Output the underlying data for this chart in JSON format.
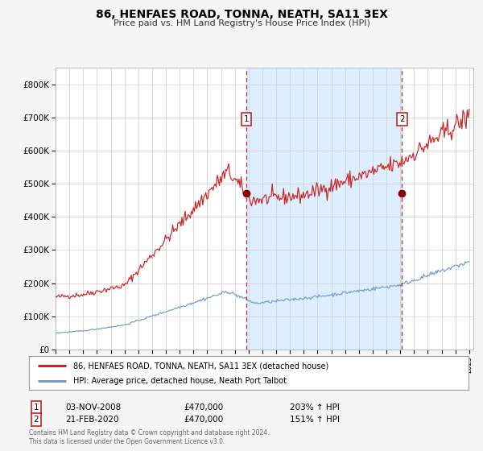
{
  "title": "86, HENFAES ROAD, TONNA, NEATH, SA11 3EX",
  "subtitle": "Price paid vs. HM Land Registry's House Price Index (HPI)",
  "bg_color": "#f5f5f5",
  "plot_bg_color": "#ffffff",
  "highlight_bg_color": "#ddeeff",
  "red_line_color": "#cc2222",
  "blue_line_color": "#7799cc",
  "marker_color": "#880000",
  "dashed_color": "#cc2222",
  "legend_red_label": "86, HENFAES ROAD, TONNA, NEATH, SA11 3EX (detached house)",
  "legend_blue_label": "HPI: Average price, detached house, Neath Port Talbot",
  "annotation1_date": "03-NOV-2008",
  "annotation1_price": "£470,000",
  "annotation1_hpi": "203% ↑ HPI",
  "annotation2_date": "21-FEB-2020",
  "annotation2_price": "£470,000",
  "annotation2_hpi": "151% ↑ HPI",
  "footer": "Contains HM Land Registry data © Crown copyright and database right 2024.\nThis data is licensed under the Open Government Licence v3.0.",
  "ylim_max": 850000,
  "transaction1_year": 2008.84,
  "transaction2_year": 2020.13,
  "transaction1_value": 470000,
  "transaction2_value": 470000
}
